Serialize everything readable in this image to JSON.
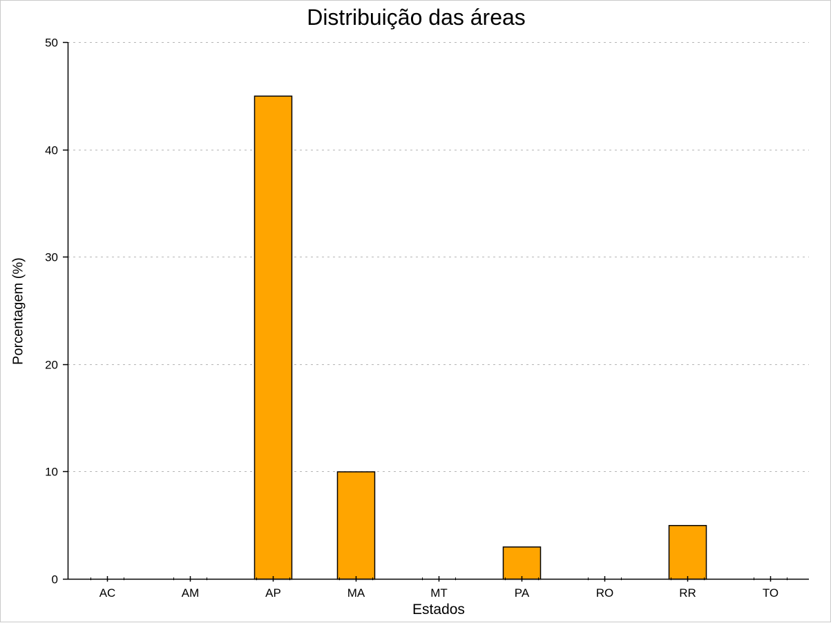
{
  "chart_data": {
    "type": "bar",
    "title": "Distribuição das áreas",
    "xlabel": "Estados",
    "ylabel": "Porcentagem (%)",
    "categories": [
      "AC",
      "AM",
      "AP",
      "MA",
      "MT",
      "PA",
      "RO",
      "RR",
      "TO"
    ],
    "values": [
      0,
      0,
      45,
      10,
      0,
      3,
      0,
      5,
      0
    ],
    "ylim": [
      0,
      50
    ],
    "yticks": [
      0,
      10,
      20,
      30,
      40,
      50
    ],
    "grid": "horizontal-dotted",
    "bar_color": "#FFA500",
    "bar_edge_color": "#000000"
  }
}
